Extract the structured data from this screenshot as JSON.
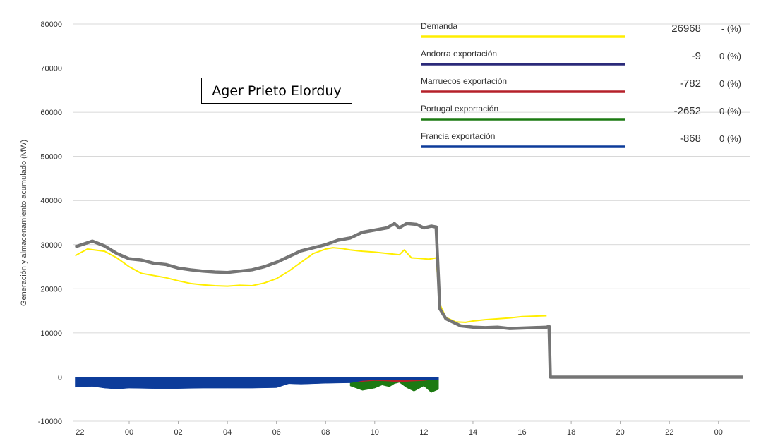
{
  "annotation": "Ager Prieto Elorduy",
  "chart_data": {
    "type": "area",
    "title": "",
    "ylabel": "Generación y almacenamiento acumulado (MW)",
    "xlabel": "",
    "ylim": [
      -10000,
      80000
    ],
    "yticks": [
      80000,
      70000,
      60000,
      50000,
      40000,
      30000,
      20000,
      10000,
      0,
      -10000
    ],
    "xlim": [
      -2.3,
      25.3
    ],
    "xticks": [
      {
        "h": -2,
        "label": "22"
      },
      {
        "h": 0,
        "label": "00"
      },
      {
        "h": 2,
        "label": "02"
      },
      {
        "h": 4,
        "label": "04"
      },
      {
        "h": 6,
        "label": "06"
      },
      {
        "h": 8,
        "label": "08"
      },
      {
        "h": 10,
        "label": "10"
      },
      {
        "h": 12,
        "label": "12"
      },
      {
        "h": 14,
        "label": "14"
      },
      {
        "h": 16,
        "label": "16"
      },
      {
        "h": 18,
        "label": "18"
      },
      {
        "h": 20,
        "label": "20"
      },
      {
        "h": 22,
        "label": "22"
      },
      {
        "h": 24,
        "label": "00"
      }
    ],
    "grid": true,
    "legend_position": "top-right",
    "legend": [
      {
        "name": "Demanda",
        "value": "26968",
        "pct": "- (%)",
        "color": "#ffee00"
      },
      {
        "name": "Andorra exportación",
        "value": "-9",
        "pct": "0 (%)",
        "color": "#2b2a7a"
      },
      {
        "name": "Marruecos exportación",
        "value": "-782",
        "pct": "0 (%)",
        "color": "#b5212a"
      },
      {
        "name": "Portugal exportación",
        "value": "-2652",
        "pct": "0 (%)",
        "color": "#1c7a12"
      },
      {
        "name": "Francia exportación",
        "value": "-868",
        "pct": "0 (%)",
        "color": "#0d3c9a"
      }
    ],
    "series": [
      {
        "name": "Demanda",
        "kind": "line",
        "color": "#ffee00",
        "x": [
          -2.2,
          -1.7,
          -1.0,
          -0.5,
          0.0,
          0.5,
          1.0,
          1.5,
          2.0,
          2.5,
          3.0,
          3.5,
          4.0,
          4.5,
          5.0,
          5.5,
          6.0,
          6.5,
          7.0,
          7.5,
          8.0,
          8.3,
          8.7,
          9.0,
          9.5,
          10.0,
          10.5,
          11.0,
          11.2,
          11.5,
          11.8,
          12.2,
          12.5,
          12.65,
          12.9,
          13.3,
          13.7,
          14.0,
          14.5,
          15.0,
          15.5,
          16.0,
          16.5,
          17.0
        ],
        "values": [
          27500,
          29000,
          28500,
          27000,
          25000,
          23500,
          23000,
          22500,
          21800,
          21200,
          20900,
          20700,
          20600,
          20800,
          20700,
          21300,
          22300,
          24000,
          26000,
          28000,
          29000,
          29300,
          29100,
          28800,
          28500,
          28300,
          28000,
          27700,
          28800,
          27000,
          26900,
          26700,
          27000,
          16500,
          13500,
          12500,
          12400,
          12700,
          13000,
          13200,
          13400,
          13700,
          13800,
          13900
        ]
      },
      {
        "name": "",
        "kind": "line",
        "color": "#757575",
        "x": [
          -2.2,
          -1.5,
          -1.0,
          -0.5,
          0.0,
          0.5,
          1.0,
          1.5,
          2.0,
          2.5,
          3.0,
          3.5,
          4.0,
          4.5,
          5.0,
          5.5,
          6.0,
          6.5,
          7.0,
          7.5,
          8.0,
          8.5,
          9.0,
          9.5,
          10.0,
          10.5,
          10.8,
          11.0,
          11.3,
          11.7,
          12.0,
          12.3,
          12.5,
          12.65,
          12.9,
          13.2,
          13.5,
          14.0,
          14.5,
          15.0,
          15.5,
          16.0,
          16.5,
          17.0,
          17.1,
          17.15,
          17.4,
          25.0
        ],
        "values": [
          29500,
          30800,
          29700,
          28000,
          26800,
          26500,
          25800,
          25500,
          24700,
          24300,
          24000,
          23800,
          23700,
          24000,
          24300,
          25000,
          26000,
          27300,
          28600,
          29300,
          30000,
          31000,
          31500,
          32800,
          33300,
          33800,
          34800,
          33800,
          34800,
          34600,
          33800,
          34200,
          34000,
          15500,
          13200,
          12400,
          11600,
          11300,
          11200,
          11300,
          11000,
          11100,
          11200,
          11300,
          11500,
          0,
          0,
          0
        ]
      },
      {
        "name": "Portugal exportación",
        "kind": "area",
        "color": "#1c7a12",
        "x": [
          9.0,
          9.5,
          10.0,
          10.3,
          10.6,
          10.8,
          11.0,
          11.3,
          11.6,
          12.0,
          12.3,
          12.5,
          12.6
        ],
        "values": [
          -2000,
          -3000,
          -2500,
          -1800,
          -2200,
          -1500,
          -1200,
          -2400,
          -3200,
          -2000,
          -3500,
          -3000,
          -2800
        ]
      },
      {
        "name": "Marruecos exportación",
        "kind": "area",
        "color": "#b5212a",
        "x": [
          0.0,
          0.5,
          1.0,
          1.5,
          2.0,
          2.5,
          9.0,
          9.5,
          10.0,
          10.5,
          11.0,
          11.3,
          11.6,
          12.0,
          12.3,
          12.6
        ],
        "values": [
          -600,
          -800,
          -600,
          -700,
          -400,
          -300,
          -1000,
          -1000,
          -800,
          -900,
          -1100,
          -1000,
          -900,
          -800,
          -600,
          -700
        ]
      },
      {
        "name": "Francia exportación",
        "kind": "area",
        "color": "#0d3c9a",
        "x": [
          -2.2,
          -1.5,
          -1.0,
          -0.5,
          0.0,
          1.0,
          2.0,
          3.0,
          4.0,
          5.0,
          6.0,
          6.5,
          7.0,
          8.0,
          9.0,
          9.5,
          10.0,
          11.0,
          11.5,
          12.0,
          12.6
        ],
        "values": [
          -2300,
          -2100,
          -2500,
          -2700,
          -2500,
          -2600,
          -2600,
          -2500,
          -2500,
          -2500,
          -2400,
          -1500,
          -1600,
          -1400,
          -1300,
          -800,
          -600,
          -600,
          -500,
          -600,
          -600
        ]
      },
      {
        "name": "Andorra exportación",
        "kind": "area",
        "color": "#2b2a7a",
        "x": [
          -2.2,
          12.6
        ],
        "values": [
          -9,
          -9
        ]
      }
    ]
  }
}
